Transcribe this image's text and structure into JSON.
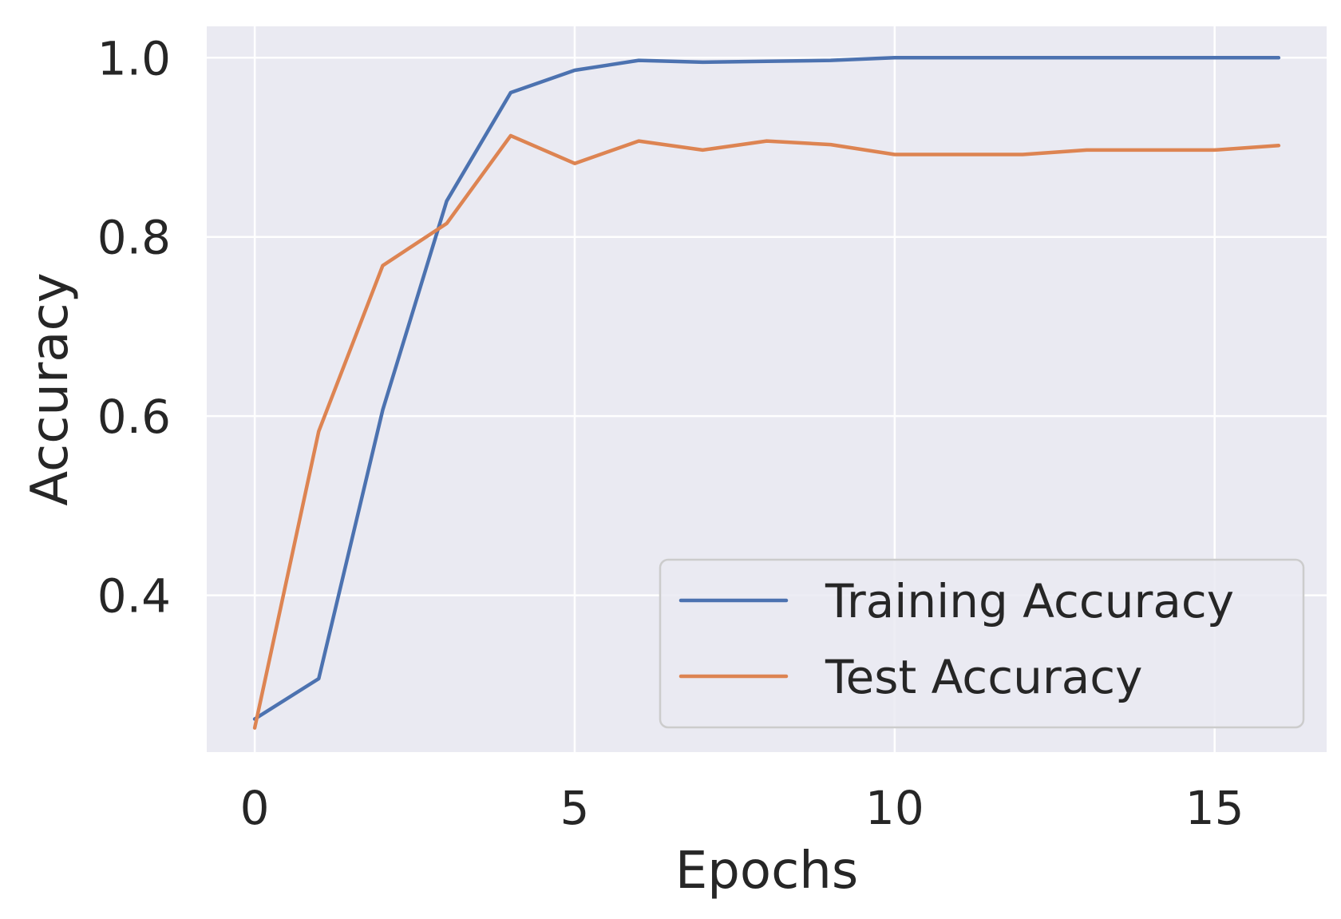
{
  "chart_data": {
    "type": "line",
    "title": "",
    "xlabel": "Epochs",
    "ylabel": "Accuracy",
    "xlim": [
      -0.75,
      16.75
    ],
    "ylim": [
      0.225,
      1.035
    ],
    "xticks": [
      0,
      5,
      10,
      15
    ],
    "yticks": [
      0.4,
      0.6,
      0.8,
      1.0
    ],
    "xtick_labels": [
      "0",
      "5",
      "10",
      "15"
    ],
    "ytick_labels": [
      "0.4",
      "0.6",
      "0.8",
      "1.0"
    ],
    "grid": true,
    "legend": "lower-right",
    "x": [
      0,
      1,
      2,
      3,
      4,
      5,
      6,
      7,
      8,
      9,
      10,
      11,
      12,
      13,
      14,
      15,
      16
    ],
    "series": [
      {
        "name": "Training Accuracy",
        "color": "#4C72B0",
        "values": [
          0.262,
          0.307,
          0.607,
          0.84,
          0.961,
          0.986,
          0.997,
          0.995,
          0.996,
          0.997,
          1.0,
          1.0,
          1.0,
          1.0,
          1.0,
          1.0,
          1.0
        ]
      },
      {
        "name": "Test Accuracy",
        "color": "#DD8452",
        "values": [
          0.252,
          0.583,
          0.768,
          0.815,
          0.913,
          0.882,
          0.907,
          0.897,
          0.907,
          0.903,
          0.892,
          0.892,
          0.892,
          0.897,
          0.897,
          0.897,
          0.902
        ]
      }
    ]
  },
  "style": {
    "plot_background": "#EAEAF2",
    "grid_color": "#FFFFFF",
    "text_color": "#262626",
    "legend_background": "#EAEAF2",
    "legend_border": "#CCCCCC"
  }
}
